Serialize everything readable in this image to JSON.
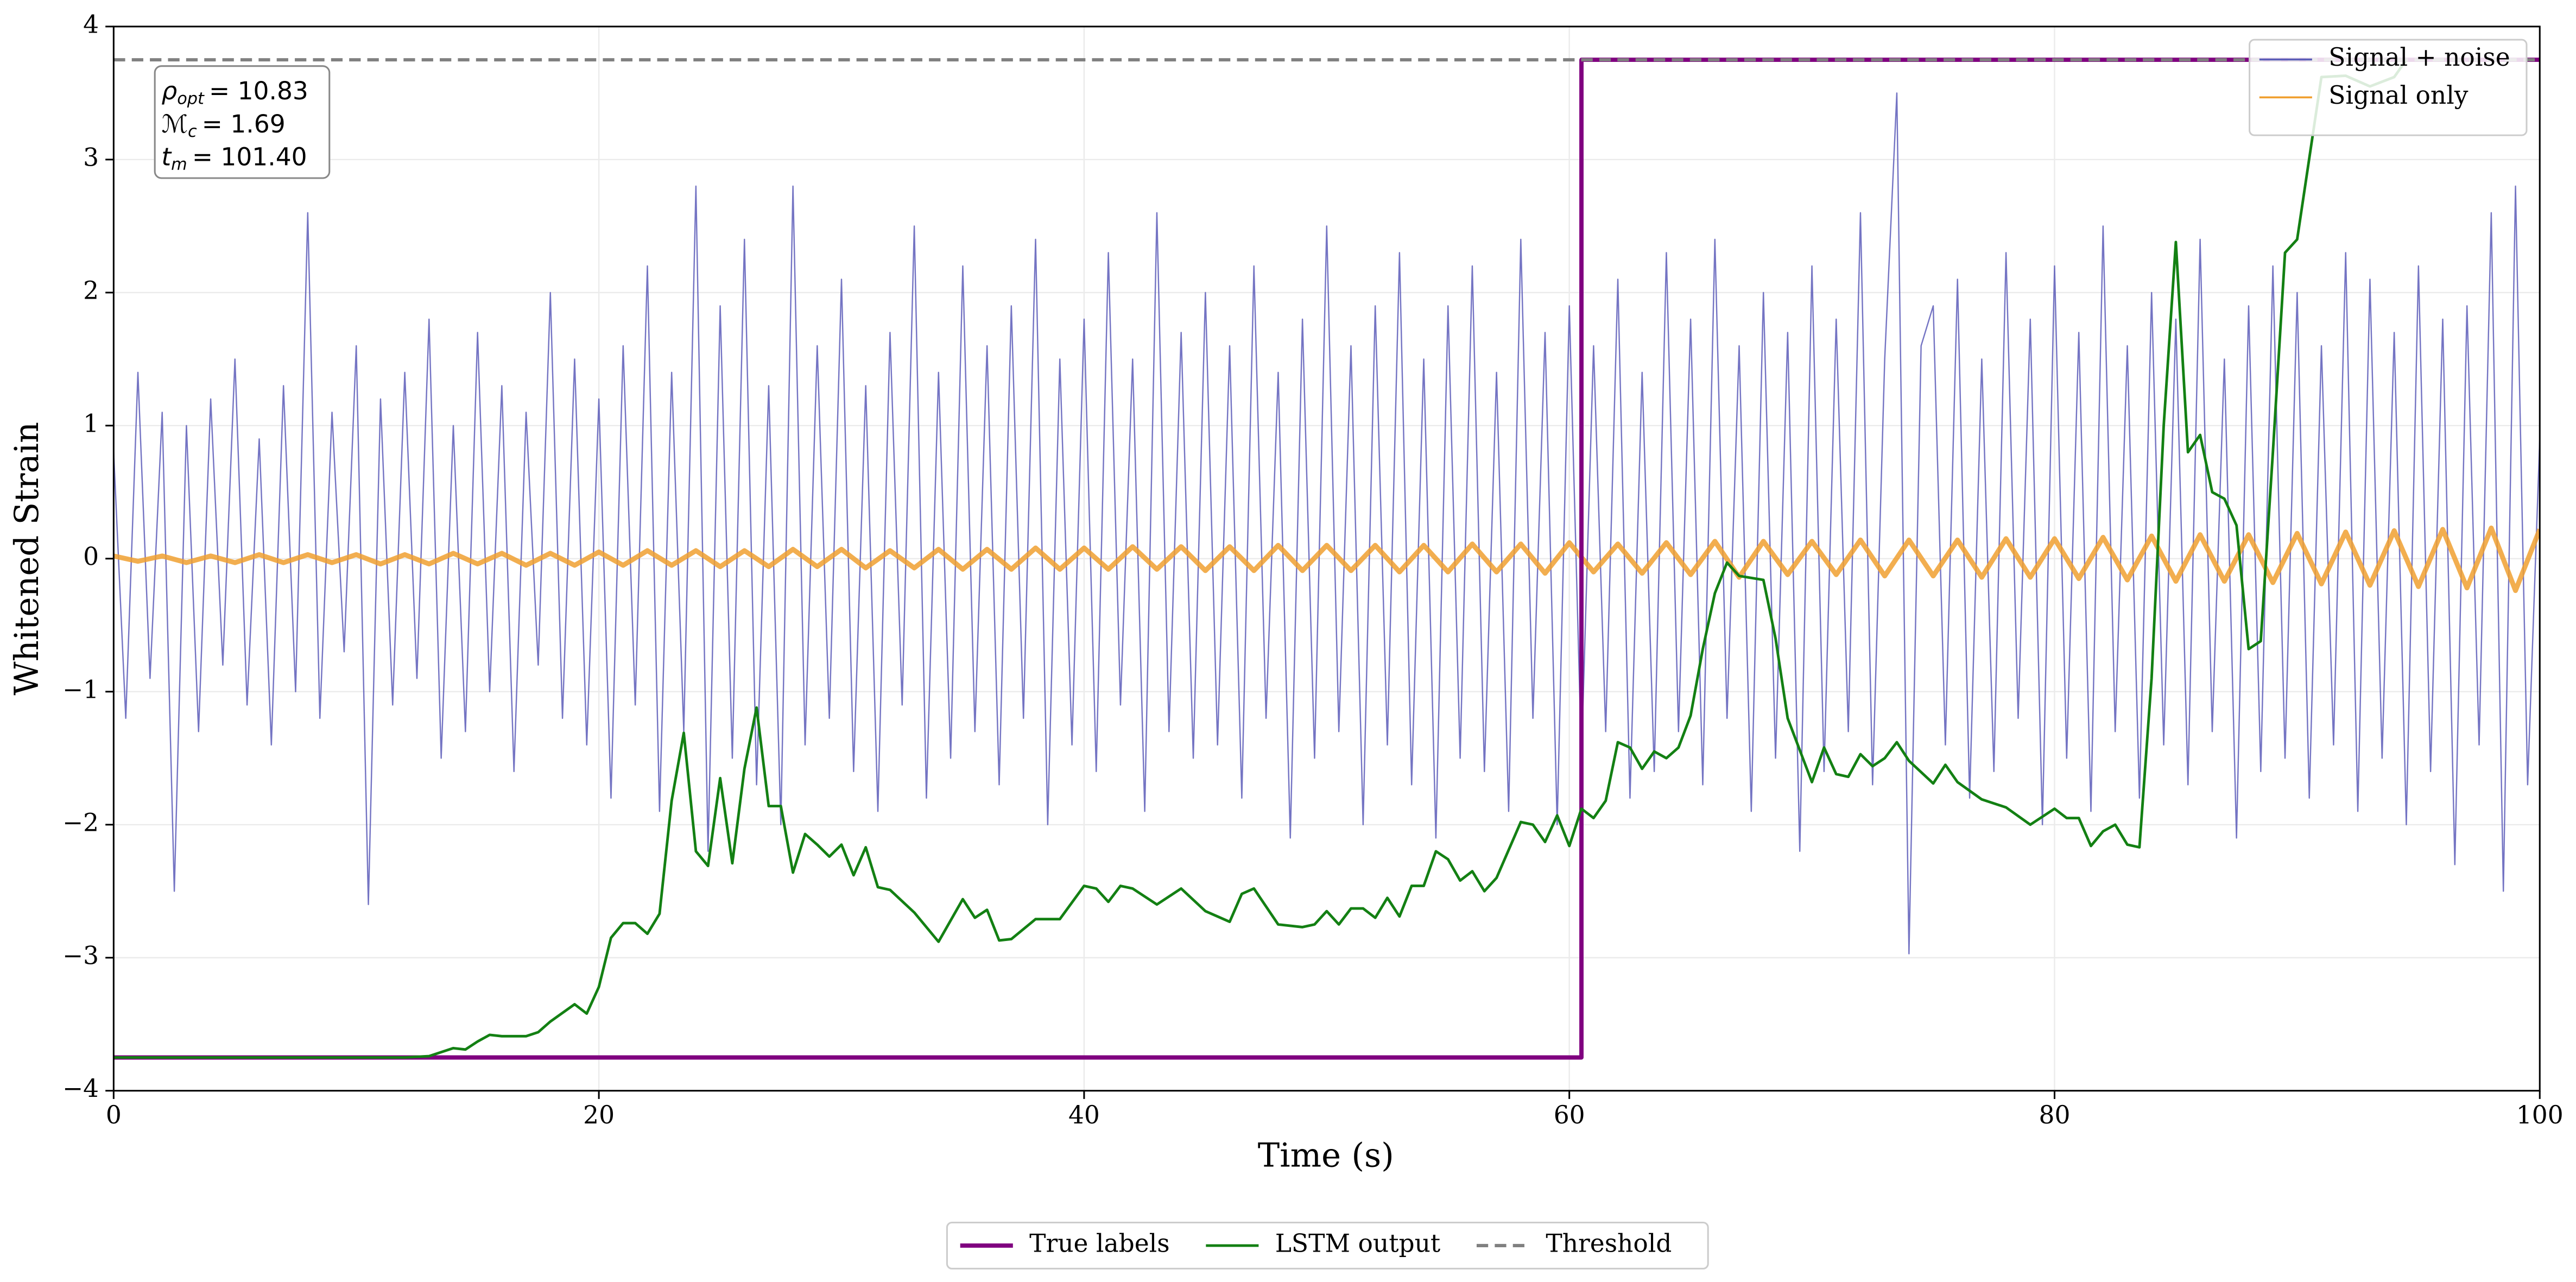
{
  "chart_data": {
    "type": "line",
    "xlabel": "Time (s)",
    "ylabel": "Whitened Strain",
    "xlim": [
      0,
      100
    ],
    "ylim": [
      -4,
      4
    ],
    "xticks": [
      0,
      20,
      40,
      60,
      80,
      100
    ],
    "yticks": [
      {
        "value": -4,
        "label": "−4"
      },
      {
        "value": -3,
        "label": "−3"
      },
      {
        "value": -2,
        "label": "−2"
      },
      {
        "value": -1,
        "label": "−1"
      },
      0,
      1,
      2,
      3,
      4
    ],
    "grid": true,
    "annotation": [
      {
        "symbol": "ρ",
        "subscript": "opt",
        "text": "= 10.83"
      },
      {
        "symbol": "ℳ",
        "subscript": "c",
        "text": "= 1.69"
      },
      {
        "symbol": "t",
        "subscript": "m",
        "text": "= 101.40"
      }
    ],
    "series": [
      {
        "name": "Signal + noise",
        "color": "#5c5cb8",
        "legend": "upper right",
        "x": [
          0,
          0.5,
          1,
          1.5,
          2,
          2.5,
          3,
          3.5,
          4,
          4.5,
          5,
          5.5,
          6,
          6.5,
          7,
          7.5,
          8,
          8.5,
          9,
          9.5,
          10,
          10.5,
          11,
          11.5,
          12,
          12.5,
          13,
          13.5,
          14,
          14.5,
          15,
          15.5,
          16,
          16.5,
          17,
          17.5,
          18,
          18.5,
          19,
          19.5,
          20,
          20.5,
          21,
          21.5,
          22,
          22.5,
          23,
          23.5,
          24,
          24.5,
          25,
          25.5,
          26,
          26.5,
          27,
          27.5,
          28,
          28.5,
          29,
          29.5,
          30,
          30.5,
          31,
          31.5,
          32,
          32.5,
          33,
          33.5,
          34,
          34.5,
          35,
          35.5,
          36,
          36.5,
          37,
          37.5,
          38,
          38.5,
          39,
          39.5,
          40,
          40.5,
          41,
          41.5,
          42,
          42.5,
          43,
          43.5,
          44,
          44.5,
          45,
          45.5,
          46,
          46.5,
          47,
          47.5,
          48,
          48.5,
          49,
          49.5,
          50,
          50.5,
          51,
          51.5,
          52,
          52.5,
          53,
          53.5,
          54,
          54.5,
          55,
          55.5,
          56,
          56.5,
          57,
          57.5,
          58,
          58.5,
          59,
          59.5,
          60,
          60.5,
          61,
          61.5,
          62,
          62.5,
          63,
          63.5,
          64,
          64.5,
          65,
          65.5,
          66,
          66.5,
          67,
          67.5,
          68,
          68.5,
          69,
          69.5,
          70,
          70.5,
          71,
          71.5,
          72,
          72.5,
          73,
          73.5,
          74,
          74.5,
          75,
          75.5,
          76,
          76.5,
          77,
          77.5,
          78,
          78.5,
          79,
          79.5,
          80,
          80.5,
          81,
          81.5,
          82,
          82.5,
          83,
          83.5,
          84,
          84.5,
          85,
          85.5,
          86,
          86.5,
          87,
          87.5,
          88,
          88.5,
          89,
          89.5,
          90,
          90.5,
          91,
          91.5,
          92,
          92.5,
          93,
          93.5,
          94,
          94.5,
          95,
          95.5,
          96,
          96.5,
          97,
          97.5,
          98,
          98.5,
          99,
          99.5,
          100
        ],
        "values": [
          0.8,
          -1.2,
          1.4,
          -0.9,
          1.1,
          -2.5,
          1.0,
          -1.3,
          1.2,
          -0.8,
          1.5,
          -1.1,
          0.9,
          -1.4,
          1.3,
          -1.0,
          2.6,
          -1.2,
          1.1,
          -0.7,
          1.6,
          -2.6,
          1.2,
          -1.1,
          1.4,
          -0.9,
          1.8,
          -1.5,
          1.0,
          -1.3,
          1.7,
          -1.0,
          1.3,
          -1.6,
          1.1,
          -0.8,
          2.0,
          -1.2,
          1.5,
          -1.4,
          1.2,
          -1.8,
          1.6,
          -1.1,
          2.2,
          -1.9,
          1.4,
          -1.3,
          2.8,
          -2.2,
          1.9,
          -1.5,
          2.4,
          -1.7,
          1.3,
          -2.0,
          2.8,
          -1.4,
          1.6,
          -1.2,
          2.1,
          -1.6,
          1.3,
          -1.9,
          1.7,
          -1.1,
          2.5,
          -1.8,
          1.4,
          -1.5,
          2.2,
          -1.3,
          1.6,
          -1.7,
          1.9,
          -1.2,
          2.4,
          -2.0,
          1.5,
          -1.4,
          1.8,
          -1.6,
          2.3,
          -1.1,
          1.5,
          -1.9,
          2.6,
          -1.3,
          1.7,
          -1.5,
          2.0,
          -1.4,
          1.6,
          -1.8,
          2.2,
          -1.2,
          1.4,
          -2.1,
          1.8,
          -1.5,
          2.5,
          -1.3,
          1.6,
          -2.0,
          1.9,
          -1.4,
          2.3,
          -1.7,
          1.5,
          -2.1,
          1.9,
          -1.5,
          2.2,
          -1.6,
          1.4,
          -1.9,
          2.4,
          -1.2,
          1.7,
          -2.0,
          1.9,
          -1.5,
          1.6,
          -1.3,
          2.1,
          -1.8,
          1.4,
          -1.6,
          2.3,
          -1.3,
          1.8,
          -1.7,
          2.4,
          -1.2,
          1.6,
          -1.9,
          2.0,
          -1.5,
          1.7,
          -2.2,
          2.2,
          -1.6,
          1.8,
          -1.3,
          2.6,
          -1.7,
          1.5,
          3.5,
          -2.97,
          1.6,
          1.9,
          -1.4,
          2.1,
          -1.8,
          1.5,
          -1.6,
          2.3,
          -1.2,
          1.8,
          -2.0,
          2.2,
          -1.5,
          1.7,
          -1.9,
          2.5,
          -1.3,
          1.6,
          -1.8,
          2.0,
          -1.4,
          1.8,
          -1.7,
          2.4,
          -1.3,
          1.5,
          -2.1,
          1.9,
          -1.6,
          2.2,
          -1.5,
          2.0,
          -1.8,
          1.6,
          -1.4,
          2.3,
          -1.9,
          2.1,
          -1.5,
          1.7,
          -2.0,
          2.2,
          -1.6,
          1.8,
          -2.3,
          1.9,
          -1.4,
          2.6,
          -2.5,
          2.8,
          -1.7,
          0.9
        ]
      },
      {
        "name": "Signal only",
        "color": "#f0a030",
        "legend": "upper right",
        "x": [
          0,
          1,
          2,
          3,
          4,
          5,
          6,
          7,
          8,
          9,
          10,
          11,
          12,
          13,
          14,
          15,
          16,
          17,
          18,
          19,
          20,
          21,
          22,
          23,
          24,
          25,
          26,
          27,
          28,
          29,
          30,
          31,
          32,
          33,
          34,
          35,
          36,
          37,
          38,
          39,
          40,
          41,
          42,
          43,
          44,
          45,
          46,
          47,
          48,
          49,
          50,
          51,
          52,
          53,
          54,
          55,
          56,
          57,
          58,
          59,
          60,
          61,
          62,
          63,
          64,
          65,
          66,
          67,
          68,
          69,
          70,
          71,
          72,
          73,
          74,
          75,
          76,
          77,
          78,
          79,
          80,
          81,
          82,
          83,
          84,
          85,
          86,
          87,
          88,
          89,
          90,
          91,
          92,
          93,
          94,
          95,
          96,
          97,
          98,
          99,
          100
        ],
        "values": [
          0.02,
          -0.02,
          0.02,
          -0.03,
          0.02,
          -0.03,
          0.03,
          -0.03,
          0.03,
          -0.03,
          0.03,
          -0.04,
          0.03,
          -0.04,
          0.04,
          -0.04,
          0.04,
          -0.05,
          0.04,
          -0.05,
          0.05,
          -0.05,
          0.06,
          -0.05,
          0.06,
          -0.06,
          0.06,
          -0.06,
          0.07,
          -0.06,
          0.07,
          -0.07,
          0.06,
          -0.07,
          0.07,
          -0.08,
          0.07,
          -0.08,
          0.08,
          -0.08,
          0.08,
          -0.08,
          0.09,
          -0.08,
          0.09,
          -0.09,
          0.09,
          -0.09,
          0.1,
          -0.09,
          0.1,
          -0.09,
          0.1,
          -0.1,
          0.1,
          -0.1,
          0.11,
          -0.1,
          0.11,
          -0.11,
          0.12,
          -0.1,
          0.11,
          -0.11,
          0.12,
          -0.12,
          0.13,
          -0.14,
          0.13,
          -0.12,
          0.13,
          -0.12,
          0.14,
          -0.13,
          0.14,
          -0.13,
          0.14,
          -0.14,
          0.15,
          -0.14,
          0.15,
          -0.15,
          0.16,
          -0.16,
          0.17,
          -0.17,
          0.18,
          -0.17,
          0.18,
          -0.18,
          0.19,
          -0.19,
          0.2,
          -0.2,
          0.21,
          -0.21,
          0.22,
          -0.22,
          0.23,
          -0.24,
          0.22
        ]
      },
      {
        "name": "True labels",
        "color": "#800080",
        "legend": "lower center",
        "x": [
          0,
          60.5,
          60.5,
          100
        ],
        "values": [
          -3.75,
          -3.75,
          3.75,
          3.75
        ]
      },
      {
        "name": "LSTM output",
        "color": "#138013",
        "legend": "lower center",
        "x": [
          0,
          12,
          13,
          14,
          14.5,
          15,
          15.5,
          16,
          17,
          17.5,
          18,
          19,
          19.5,
          20,
          20.5,
          21,
          21.5,
          22,
          22.5,
          23,
          23.5,
          24,
          24.5,
          25,
          25.5,
          26,
          26.5,
          27,
          27.5,
          28,
          28.5,
          29,
          29.5,
          30,
          30.5,
          31,
          31.5,
          32,
          33,
          34,
          35,
          35.5,
          36,
          36.5,
          37,
          38,
          39,
          40,
          40.5,
          41,
          41.5,
          42,
          43,
          44,
          45,
          46,
          46.5,
          47,
          48,
          49,
          49.5,
          50,
          50.5,
          51,
          51.5,
          52,
          52.5,
          53,
          53.5,
          54,
          54.5,
          55,
          55.5,
          56,
          56.5,
          57,
          58,
          58.5,
          59,
          59.5,
          60,
          60.5,
          61,
          61.5,
          62,
          62.5,
          63,
          63.5,
          64,
          64.5,
          65,
          65.5,
          66,
          66.5,
          67,
          68,
          68.5,
          69,
          70,
          70.5,
          71,
          71.5,
          72,
          72.5,
          73,
          73.5,
          74,
          75,
          75.5,
          76,
          77,
          78,
          79,
          80,
          80.5,
          81,
          81.5,
          82,
          82.5,
          83,
          83.5,
          84,
          84.5,
          85,
          85.5,
          86,
          86.5,
          87,
          87.5,
          88,
          88.5,
          89,
          89.5,
          90,
          91,
          92,
          93,
          94,
          94.5
        ],
        "values": [
          -3.75,
          -3.75,
          -3.74,
          -3.68,
          -3.69,
          -3.63,
          -3.58,
          -3.59,
          -3.59,
          -3.56,
          -3.48,
          -3.35,
          -3.42,
          -3.22,
          -2.85,
          -2.74,
          -2.74,
          -2.82,
          -2.67,
          -1.82,
          -1.31,
          -2.2,
          -2.31,
          -1.65,
          -2.29,
          -1.58,
          -1.12,
          -1.86,
          -1.86,
          -2.36,
          -2.07,
          -2.15,
          -2.24,
          -2.15,
          -2.38,
          -2.17,
          -2.47,
          -2.49,
          -2.66,
          -2.88,
          -2.56,
          -2.7,
          -2.64,
          -2.87,
          -2.86,
          -2.71,
          -2.71,
          -2.46,
          -2.48,
          -2.58,
          -2.46,
          -2.48,
          -2.6,
          -2.48,
          -2.65,
          -2.73,
          -2.52,
          -2.48,
          -2.75,
          -2.77,
          -2.75,
          -2.65,
          -2.75,
          -2.63,
          -2.63,
          -2.7,
          -2.55,
          -2.69,
          -2.46,
          -2.46,
          -2.2,
          -2.26,
          -2.42,
          -2.35,
          -2.5,
          -2.4,
          -1.98,
          -2.0,
          -2.13,
          -1.93,
          -2.16,
          -1.88,
          -1.95,
          -1.82,
          -1.38,
          -1.42,
          -1.58,
          -1.45,
          -1.5,
          -1.42,
          -1.18,
          -0.68,
          -0.26,
          -0.03,
          -0.13,
          -0.16,
          -0.6,
          -1.2,
          -1.68,
          -1.42,
          -1.62,
          -1.64,
          -1.47,
          -1.56,
          -1.5,
          -1.38,
          -1.52,
          -1.69,
          -1.55,
          -1.68,
          -1.81,
          -1.87,
          -2.0,
          -1.88,
          -1.95,
          -1.95,
          -2.16,
          -2.05,
          -2.0,
          -2.15,
          -2.17,
          -0.9,
          1.0,
          2.38,
          0.8,
          0.93,
          0.5,
          0.45,
          0.25,
          -0.68,
          -0.62,
          0.8,
          2.3,
          2.4,
          3.62,
          3.63,
          3.55,
          3.62,
          3.75
        ]
      },
      {
        "name": "Threshold",
        "color": "#808080",
        "legend": "lower center",
        "dashed": true,
        "x": [
          0,
          100
        ],
        "values": [
          3.75,
          3.75
        ]
      }
    ]
  }
}
